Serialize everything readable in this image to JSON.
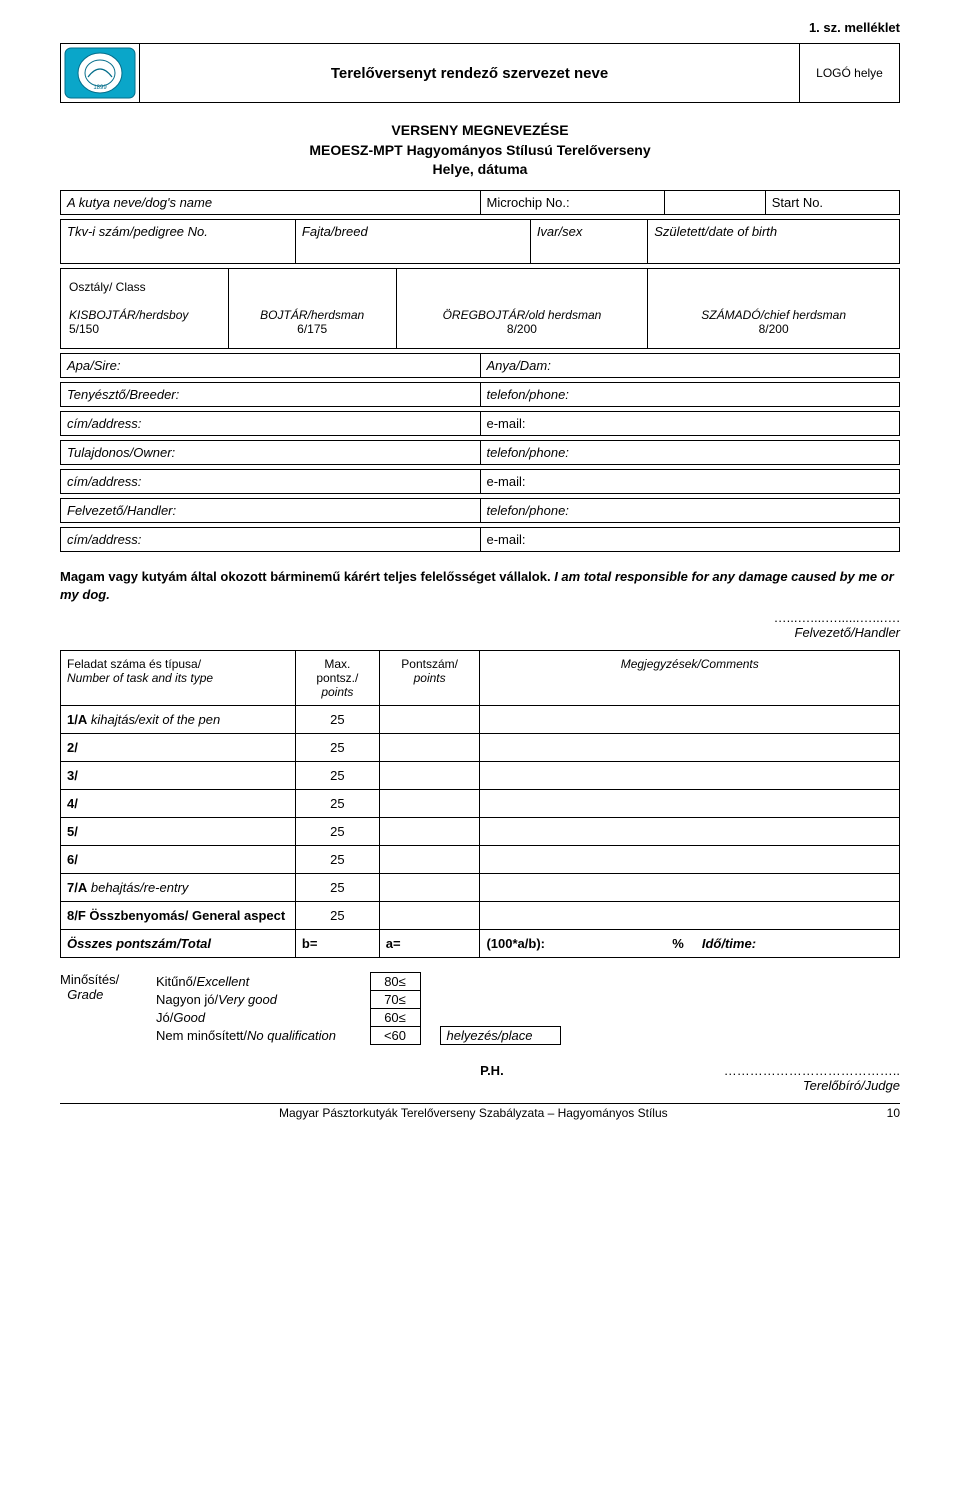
{
  "attachment": "1.  sz. melléklet",
  "org_title": "Terelőversenyt rendező szervezet neve",
  "logo_right": "LOGÓ helye",
  "heading": {
    "l1": "VERSENY MEGNEVEZÉSE",
    "l2": "MEOESZ-MPT Hagyományos Stílusú Terelőverseny",
    "l3": "Helye, dátuma"
  },
  "row1": {
    "dog": "A kutya neve/dog's name",
    "chip": "Microchip No.:",
    "start": "Start No."
  },
  "row2": {
    "ped": "Tkv-i szám/pedigree No.",
    "breed": "Fajta/breed",
    "sex": "Ivar/sex",
    "dob": "Született/date of birth"
  },
  "classes": {
    "label": "Osztály/ Class",
    "c1a": "KISBOJTÁR/herdsboy",
    "c1b": "5/150",
    "c2a": "BOJTÁR/herdsman",
    "c2b": "6/175",
    "c3a": "ÖREGBOJTÁR/old herdsman",
    "c3b": "8/200",
    "c4a": "SZÁMADÓ/chief herdsman",
    "c4b": "8/200"
  },
  "sire": "Apa/Sire:",
  "dam": "Anya/Dam:",
  "breeder": "Tenyésztő/Breeder:",
  "phone": "telefon/phone:",
  "address": "cím/address:",
  "email": "e-mail:",
  "owner": "Tulajdonos/Owner:",
  "handler": "Felvezető/Handler:",
  "statement_bold": "Magam vagy kutyám által okozott bárminemű kárért teljes felelősséget vállalok.",
  "statement_ital": " I am total responsible for any damage caused by me or my dog.",
  "sig_dots": "…...…....…......…...….",
  "sig_handler": "Felvezető/Handler",
  "tasks": {
    "h1a": "Feladat száma és típusa/",
    "h1b": "Number of task and its type",
    "h2a": "Max.",
    "h2b": "pontsz./",
    "h2c": "points",
    "h3a": "Pontszám/",
    "h3b": "points",
    "h4a": "Megjegyzések/Comments",
    "rows": [
      {
        "label": "1/A kihajtás/exit of the pen",
        "max": "25"
      },
      {
        "label": "2/",
        "max": "25"
      },
      {
        "label": "3/",
        "max": "25"
      },
      {
        "label": "4/",
        "max": "25"
      },
      {
        "label": "5/",
        "max": "25"
      },
      {
        "label": "6/",
        "max": "25"
      },
      {
        "label": "7/A behajtás/re-entry",
        "max": "25"
      },
      {
        "label": "8/F Összbenyomás/\n             General aspect",
        "max": "25"
      }
    ],
    "total_label": "Összes pontszám/Total",
    "b": "b=",
    "a": "a=",
    "ratio": "(100*a/b):",
    "pct": "%",
    "time": "Idő/time:"
  },
  "grade": {
    "label1": "Minősítés/",
    "label2": "Grade",
    "rows": [
      {
        "name": "Kitűnő/Excellent",
        "val": "80≤"
      },
      {
        "name": "Nagyon jó/Very good",
        "val": "70≤"
      },
      {
        "name": "Jó/Good",
        "val": "60≤"
      },
      {
        "name": "Nem minősített/No qualification",
        "val": "<60"
      }
    ],
    "place": "helyezés/place"
  },
  "ph": "P.H.",
  "judge_dots": "…………………………………..",
  "judge": "Terelőbíró/Judge",
  "footer": "Magyar Pásztorkutyák Terelőverseny Szabályzata – Hagyományos Stílus",
  "page_num": "10"
}
